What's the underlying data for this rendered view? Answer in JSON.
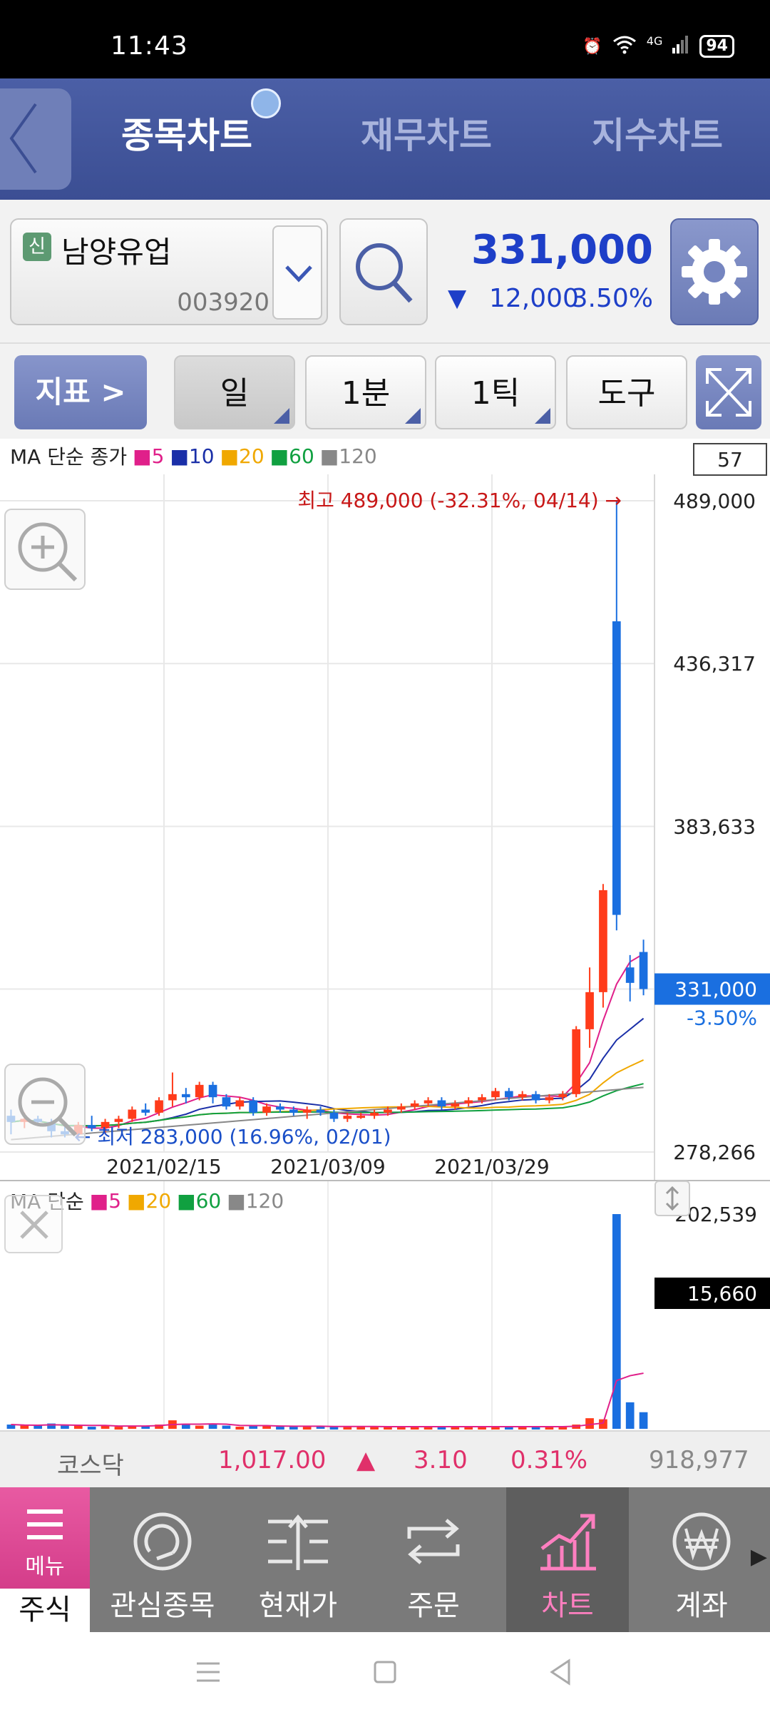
{
  "status_bar": {
    "time": "11:43",
    "network": "4G",
    "battery": "94"
  },
  "header": {
    "tabs": [
      {
        "label": "종목차트",
        "active": true
      },
      {
        "label": "재무차트",
        "active": false
      },
      {
        "label": "지수차트",
        "active": false
      }
    ]
  },
  "stock": {
    "badge": "신",
    "name": "남양유업",
    "code": "003920",
    "price": "331,000",
    "change": "12,000",
    "change_pct": "3.50%",
    "down_color": "#1e3fc8"
  },
  "toolbar": {
    "indicator_label": "지표 >",
    "period": "일",
    "minute": "1분",
    "tick": "1틱",
    "tools": "도구"
  },
  "chart_data": {
    "type": "candlestick",
    "ma_legend": {
      "prefix": "MA 단순 종가",
      "periods": [
        {
          "label": "5",
          "color": "#e0208a"
        },
        {
          "label": "10",
          "color": "#1a2fa8"
        },
        {
          "label": "20",
          "color": "#f0a800"
        },
        {
          "label": "60",
          "color": "#10a040"
        },
        {
          "label": "120",
          "color": "#888888"
        }
      ]
    },
    "count_box": "57",
    "y_ticks": [
      "489,000",
      "436,317",
      "383,633",
      "331,000",
      "278,266"
    ],
    "y_range": [
      278266,
      489000
    ],
    "x_ticks": [
      "2021/02/15",
      "2021/03/09",
      "2021/03/29"
    ],
    "high_annotation": "최고 489,000 (-32.31%, 04/14) →",
    "low_annotation": "← 최저 283,000 (16.96%, 02/01)",
    "current_price_label": "331,000",
    "current_pct_label": "-3.50%",
    "up_color": "#ff3b1a",
    "down_color": "#1a6fe0",
    "candles": [
      {
        "o": 290000,
        "h": 292000,
        "l": 284000,
        "c": 288000
      },
      {
        "o": 288000,
        "h": 291000,
        "l": 286000,
        "c": 289000
      },
      {
        "o": 289000,
        "h": 290000,
        "l": 287000,
        "c": 288000
      },
      {
        "o": 288000,
        "h": 289000,
        "l": 283000,
        "c": 285000
      },
      {
        "o": 285000,
        "h": 287000,
        "l": 283000,
        "c": 284000
      },
      {
        "o": 284000,
        "h": 288000,
        "l": 283000,
        "c": 287000
      },
      {
        "o": 287000,
        "h": 290000,
        "l": 285000,
        "c": 286000
      },
      {
        "o": 286000,
        "h": 289000,
        "l": 284000,
        "c": 288000
      },
      {
        "o": 288000,
        "h": 290000,
        "l": 286000,
        "c": 289000
      },
      {
        "o": 289000,
        "h": 293000,
        "l": 288000,
        "c": 292000
      },
      {
        "o": 292000,
        "h": 294000,
        "l": 290000,
        "c": 291000
      },
      {
        "o": 291000,
        "h": 296000,
        "l": 290000,
        "c": 295000
      },
      {
        "o": 295000,
        "h": 304000,
        "l": 293000,
        "c": 297000
      },
      {
        "o": 297000,
        "h": 299000,
        "l": 294000,
        "c": 296000
      },
      {
        "o": 296000,
        "h": 301000,
        "l": 295000,
        "c": 300000
      },
      {
        "o": 300000,
        "h": 301000,
        "l": 294000,
        "c": 296000
      },
      {
        "o": 296000,
        "h": 297000,
        "l": 292000,
        "c": 293000
      },
      {
        "o": 293000,
        "h": 296000,
        "l": 292000,
        "c": 295000
      },
      {
        "o": 295000,
        "h": 296000,
        "l": 290000,
        "c": 291000
      },
      {
        "o": 291000,
        "h": 294000,
        "l": 290000,
        "c": 293000
      },
      {
        "o": 293000,
        "h": 294000,
        "l": 291000,
        "c": 292000
      },
      {
        "o": 292000,
        "h": 293000,
        "l": 290000,
        "c": 291000
      },
      {
        "o": 291000,
        "h": 293000,
        "l": 289000,
        "c": 292000
      },
      {
        "o": 292000,
        "h": 293000,
        "l": 290000,
        "c": 291000
      },
      {
        "o": 291000,
        "h": 292000,
        "l": 288000,
        "c": 289000
      },
      {
        "o": 289000,
        "h": 291000,
        "l": 288000,
        "c": 290000
      },
      {
        "o": 290000,
        "h": 291000,
        "l": 289000,
        "c": 290000
      },
      {
        "o": 290000,
        "h": 292000,
        "l": 289000,
        "c": 291000
      },
      {
        "o": 291000,
        "h": 293000,
        "l": 290000,
        "c": 292000
      },
      {
        "o": 292000,
        "h": 294000,
        "l": 291000,
        "c": 293000
      },
      {
        "o": 293000,
        "h": 295000,
        "l": 292000,
        "c": 294000
      },
      {
        "o": 294000,
        "h": 296000,
        "l": 293000,
        "c": 295000
      },
      {
        "o": 295000,
        "h": 296000,
        "l": 292000,
        "c": 293000
      },
      {
        "o": 293000,
        "h": 295000,
        "l": 292000,
        "c": 294000
      },
      {
        "o": 294000,
        "h": 296000,
        "l": 293000,
        "c": 295000
      },
      {
        "o": 295000,
        "h": 297000,
        "l": 294000,
        "c": 296000
      },
      {
        "o": 296000,
        "h": 299000,
        "l": 295000,
        "c": 298000
      },
      {
        "o": 298000,
        "h": 299000,
        "l": 295000,
        "c": 296000
      },
      {
        "o": 296000,
        "h": 298000,
        "l": 295000,
        "c": 297000
      },
      {
        "o": 297000,
        "h": 298000,
        "l": 294000,
        "c": 295000
      },
      {
        "o": 295000,
        "h": 297000,
        "l": 294000,
        "c": 296000
      },
      {
        "o": 296000,
        "h": 298000,
        "l": 295000,
        "c": 297000
      },
      {
        "o": 297000,
        "h": 319000,
        "l": 296000,
        "c": 318000
      },
      {
        "o": 318000,
        "h": 338000,
        "l": 312000,
        "c": 330000
      },
      {
        "o": 330000,
        "h": 365000,
        "l": 325000,
        "c": 363000
      },
      {
        "o": 450000,
        "h": 489000,
        "l": 350000,
        "c": 355000
      },
      {
        "o": 338000,
        "h": 342000,
        "l": 327000,
        "c": 333000
      },
      {
        "o": 343000,
        "h": 347000,
        "l": 329000,
        "c": 331000
      }
    ],
    "volume": {
      "legend_prefix": "MA 단순",
      "legend": [
        {
          "label": "5",
          "color": "#e0208a"
        },
        {
          "label": "20",
          "color": "#f0a800"
        },
        {
          "label": "60",
          "color": "#10a040"
        },
        {
          "label": "120",
          "color": "#888888"
        }
      ],
      "y_ticks": [
        "202,539",
        "15,660"
      ],
      "y_max": 202539,
      "values": [
        4000,
        3000,
        3000,
        5000,
        3000,
        3000,
        2000,
        3000,
        2000,
        3000,
        3000,
        4000,
        8000,
        4000,
        3000,
        4000,
        3000,
        2000,
        3000,
        3000,
        2000,
        2000,
        2000,
        3000,
        2000,
        2000,
        2000,
        2000,
        2000,
        2000,
        2000,
        2000,
        2000,
        2000,
        2000,
        2000,
        2000,
        2000,
        2000,
        2000,
        2000,
        2000,
        4000,
        10000,
        9000,
        202539,
        25000,
        15660
      ]
    }
  },
  "index_bar": {
    "name": "코스닥",
    "value": "1,017.00",
    "arrow": "▲",
    "change": "3.10",
    "pct": "0.31%",
    "volume": "918,977"
  },
  "bottom_nav": {
    "menu": "메뉴",
    "menu_sub": "주식",
    "items": [
      {
        "label": "관심종목",
        "icon": "refresh-circle-icon"
      },
      {
        "label": "현재가",
        "icon": "price-list-icon"
      },
      {
        "label": "주문",
        "icon": "swap-arrows-icon"
      },
      {
        "label": "차트",
        "icon": "chart-trend-icon",
        "active": true
      },
      {
        "label": "계좌",
        "icon": "won-circle-icon"
      }
    ]
  }
}
